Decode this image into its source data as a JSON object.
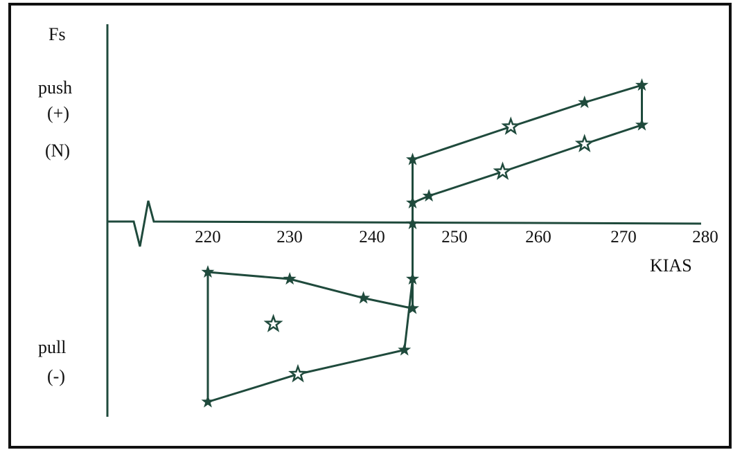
{
  "chart_data": {
    "type": "line",
    "xlabel": "KIAS",
    "ylabel_lines": [
      "Fs",
      "push",
      "(+)",
      "(N)"
    ],
    "neg_label_lines": [
      "pull",
      "(-)"
    ],
    "x_ticks": [
      "220",
      "230",
      "240",
      "250",
      "260",
      "270",
      "280"
    ],
    "xlim": [
      208,
      280
    ],
    "ylim": [
      -120,
      100
    ],
    "grid": false,
    "line_color": "#1f4a3c",
    "series": [
      {
        "marker": "filled-star",
        "points": [
          [
            245,
            37
          ],
          [
            257,
            56
          ],
          [
            266,
            70
          ],
          [
            273,
            80
          ],
          [
            273,
            57
          ],
          [
            266,
            46
          ],
          [
            256,
            30
          ],
          [
            247,
            16
          ],
          [
            245,
            12
          ],
          [
            245,
            0
          ],
          [
            245,
            -49
          ],
          [
            239,
            -43
          ],
          [
            230,
            -32
          ],
          [
            220,
            -28
          ],
          [
            220,
            -103
          ],
          [
            231,
            -87
          ],
          [
            244,
            -73
          ],
          [
            245,
            -32
          ],
          [
            245,
            37
          ]
        ]
      }
    ],
    "open_star_points": [
      [
        257,
        56
      ],
      [
        266,
        46
      ],
      [
        256,
        30
      ],
      [
        228,
        -58
      ],
      [
        231,
        -87
      ]
    ]
  }
}
